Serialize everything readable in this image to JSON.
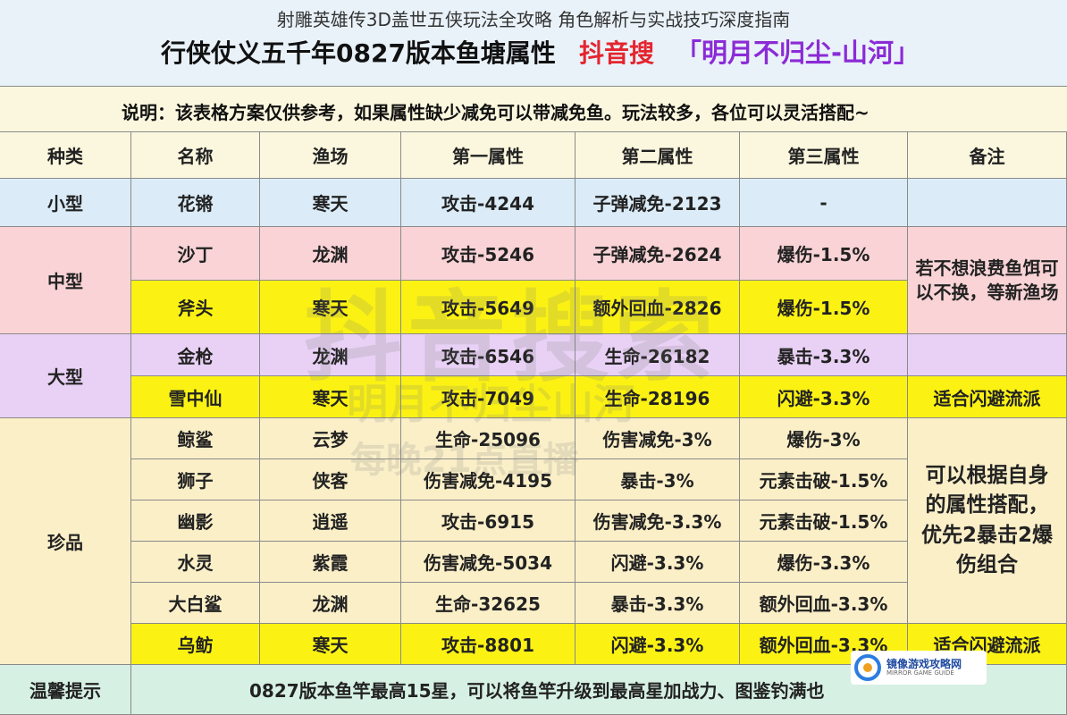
{
  "overlay_title": "射雕英雄传3D盖世五侠玩法全攻略 角色解析与实战技巧深度指南",
  "header": {
    "title": "行侠仗义五千年0827版本鱼塘属性",
    "brand": "抖音搜",
    "subtitle": "「明月不归尘-山河」"
  },
  "note": "说明：该表格方案仅供参考，如果属性缺少减免可以带减免鱼。玩法较多，各位可以灵活搭配~",
  "columns": [
    "种类",
    "名称",
    "渔场",
    "第一属性",
    "第二属性",
    "第三属性",
    "备注"
  ],
  "groups": {
    "small": "小型",
    "medium": "中型",
    "large": "大型",
    "rare": "珍品"
  },
  "rows": [
    {
      "name": "花锵",
      "area": "寒天",
      "attr1": "攻击-4244",
      "attr2": "子弹减免-2123",
      "attr3": "-"
    },
    {
      "name": "沙丁",
      "area": "龙渊",
      "attr1": "攻击-5246",
      "attr2": "子弹减免-2624",
      "attr3": "爆伤-1.5%"
    },
    {
      "name": "斧头",
      "area": "寒天",
      "attr1": "攻击-5649",
      "attr2": "额外回血-2826",
      "attr3": "爆伤-1.5%"
    },
    {
      "name": "金枪",
      "area": "龙渊",
      "attr1": "攻击-6546",
      "attr2": "生命-26182",
      "attr3": "暴击-3.3%"
    },
    {
      "name": "雪中仙",
      "area": "寒天",
      "attr1": "攻击-7049",
      "attr2": "生命-28196",
      "attr3": "闪避-3.3%"
    },
    {
      "name": "鲸鲨",
      "area": "云梦",
      "attr1": "生命-25096",
      "attr2": "伤害减免-3%",
      "attr3": "爆伤-3%"
    },
    {
      "name": "狮子",
      "area": "侠客",
      "attr1": "伤害减免-4195",
      "attr2": "暴击-3%",
      "attr3": "元素击破-1.5%"
    },
    {
      "name": "幽影",
      "area": "逍遥",
      "attr1": "攻击-6915",
      "attr2": "伤害减免-3.3%",
      "attr3": "元素击破-1.5%"
    },
    {
      "name": "水灵",
      "area": "紫霞",
      "attr1": "伤害减免-5034",
      "attr2": "闪避-3.3%",
      "attr3": "爆伤-3.3%"
    },
    {
      "name": "大白鲨",
      "area": "龙渊",
      "attr1": "生命-32625",
      "attr2": "暴击-3.3%",
      "attr3": "额外回血-3.3%"
    },
    {
      "name": "乌鲂",
      "area": "寒天",
      "attr1": "攻击-8801",
      "attr2": "闪避-3.3%",
      "attr3": "额外回血-3.3%"
    }
  ],
  "remarks": {
    "medium": "若不想浪费鱼饵可以不换，等新渔场",
    "snow": "适合闪避流派",
    "rare": "可以根据自身的属性搭配，优先2暴击2爆伤组合",
    "last": "适合闪避流派"
  },
  "tip": {
    "label": "温馨提示",
    "text": "0827版本鱼竿最高15星，可以将鱼竿升级到最高星加战力、图鉴钓满也"
  },
  "watermark": {
    "line1": "抖音搜索",
    "line2": "明月不归尘山河",
    "line3": "每晚21点直播"
  },
  "logo": {
    "name": "镜像游戏攻略网",
    "sub": "MIRROR GAME GUIDE"
  }
}
